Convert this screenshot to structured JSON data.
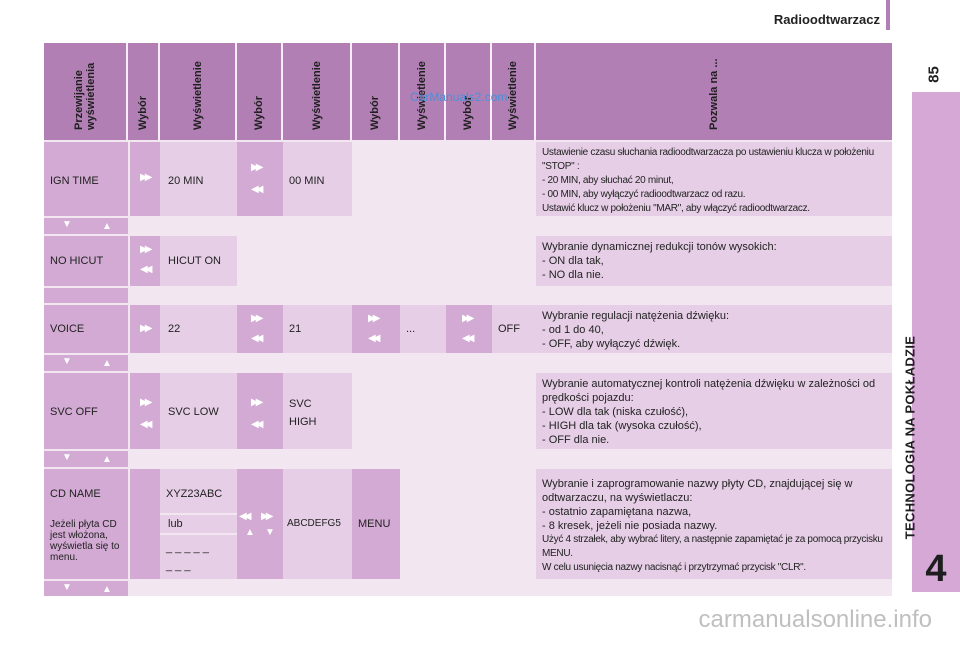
{
  "header": {
    "title": "Radioodtwarzacz",
    "page_number": "85"
  },
  "side": {
    "section": "TECHNOLOGIA NA POKŁADZIE",
    "chapter": "4"
  },
  "watermark": {
    "top": "CarManuals2.com",
    "bottom": "carmanualsonline.info"
  },
  "columns": {
    "c1": "Przewijanie wyświetlenia",
    "c2": "Wybór",
    "c3": "Wyświetlenie",
    "c4": "Wybór",
    "c5": "Wyświetlenie",
    "c6": "Wybór",
    "c7": "Wyświetlenie",
    "c8": "Wybór",
    "c9": "Wyświetlenie",
    "c10": "Pozwala na ..."
  },
  "rows": {
    "ign": {
      "name": "IGN TIME",
      "v1": "20 MIN",
      "v2": "00 MIN",
      "desc": [
        "Ustawienie czasu słuchania radioodtwarzacza po ustawieniu klucza w położeniu \"STOP\" :",
        "-     20 MIN, aby słuchać 20 minut,",
        "-     00 MIN, aby wyłączyć radioodtwarzacz od razu.",
        "Ustawić klucz w położeniu \"MAR\", aby włączyć radioodtwarzacz."
      ]
    },
    "hicut": {
      "name": "NO HICUT",
      "v1": "HICUT ON",
      "desc": [
        "Wybranie dynamicznej redukcji tonów wysokich:",
        "-     ON dla tak,",
        "-     NO dla nie."
      ]
    },
    "voice": {
      "name": "VOICE",
      "v1": "22",
      "v2": "21",
      "v3": "...",
      "v4": "OFF",
      "desc": [
        "Wybranie regulacji natężenia dźwięku:",
        "-     od 1 do 40,",
        "-     OFF, aby wyłączyć dźwięk."
      ]
    },
    "svc": {
      "name": "SVC OFF",
      "v1": "SVC LOW",
      "v2a": "SVC",
      "v2b": "HIGH",
      "desc": [
        "Wybranie automatycznej kontroli natężenia dźwięku w zależności od prędkości pojazdu:",
        "-     LOW dla tak (niska czułość),",
        "-     HIGH dla tak (wysoka czułość),",
        "-     OFF dla nie."
      ]
    },
    "cd": {
      "name": "CD NAME",
      "note": "Jeżeli płyta CD jest włożona, wyświetla się to menu.",
      "v1": "XYZ23ABC",
      "or": "lub",
      "dashes1": "_ _ _ _ _",
      "dashes2": "_ _ _",
      "v2": "ABCDEFG5",
      "v3": "MENU",
      "desc": [
        "Wybranie i zaprogramowanie nazwy płyty CD, znajdującej się w odtwarzaczu, na wyświetlaczu:",
        "-     ostatnio zapamiętana nazwa,",
        "-     8 kresek, jeżeli nie posiada nazwy.",
        "Użyć 4 strzałek, aby wybrać litery, a następnie zapamiętać je za pomocą przycisku MENU.",
        "W celu usunięcia nazwy nacisnąć i przytrzymać przycisk \"CLR\"."
      ]
    }
  },
  "icons": {
    "right": "fast-forward-icon",
    "left": "rewind-icon",
    "down": "down-arrow-icon",
    "up": "up-arrow-icon"
  },
  "colors": {
    "header": "#b17fb4",
    "dark": "#d2aad3",
    "light": "#e6cfe6",
    "side": "#d6a8d5"
  }
}
